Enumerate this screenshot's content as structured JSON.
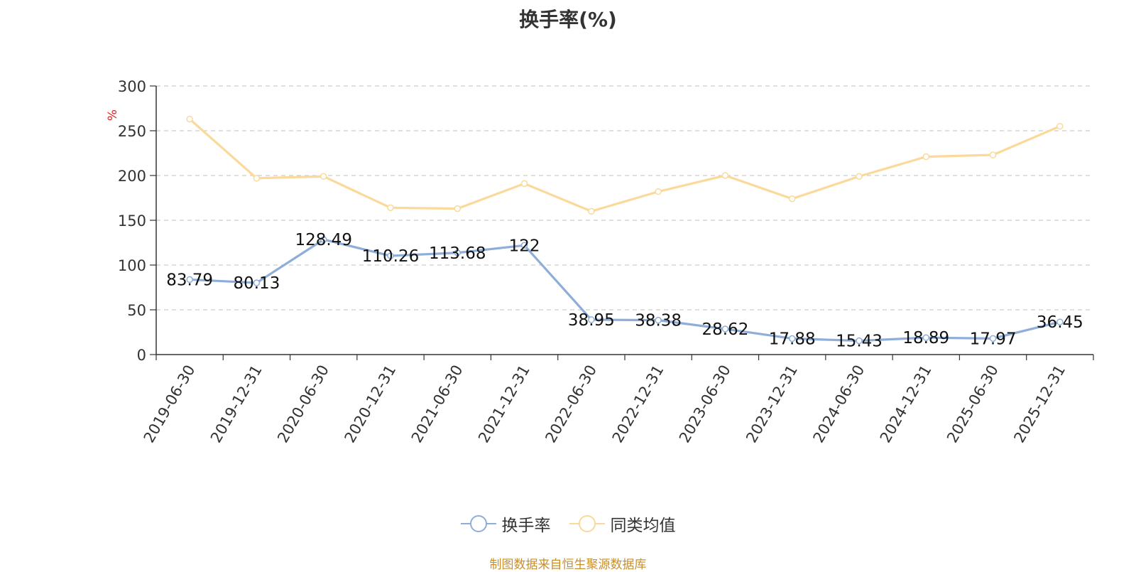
{
  "chart_data": {
    "type": "line",
    "title": "换手率(%)",
    "ylabel": "%",
    "categories": [
      "2019-06-30",
      "2019-12-31",
      "2020-06-30",
      "2020-12-31",
      "2021-06-30",
      "2021-12-31",
      "2022-06-30",
      "2022-12-31",
      "2023-06-30",
      "2023-12-31",
      "2024-06-30",
      "2024-12-31",
      "2025-06-30",
      "2025-12-31"
    ],
    "ylim": [
      0,
      300
    ],
    "yticks": [
      0,
      50,
      100,
      150,
      200,
      250,
      300
    ],
    "grid": true,
    "legend_position": "bottom",
    "series": [
      {
        "name": "换手率",
        "color": "#8eaed9",
        "data_labels": true,
        "values": [
          83.79,
          80.13,
          128.49,
          110.26,
          113.68,
          122,
          38.95,
          38.38,
          28.62,
          17.88,
          15.43,
          18.89,
          17.97,
          36.45
        ]
      },
      {
        "name": "同类均值",
        "color": "#fbd99b",
        "data_labels": false,
        "values": [
          263,
          197,
          199,
          164,
          163,
          191,
          160,
          182,
          200,
          174,
          199,
          221,
          223,
          255
        ]
      }
    ]
  },
  "source": "制图数据来自恒生聚源数据库"
}
